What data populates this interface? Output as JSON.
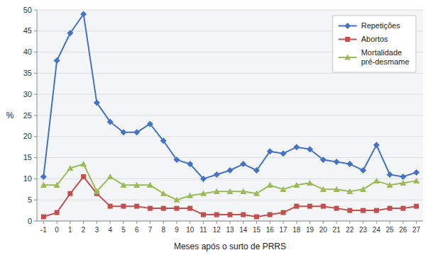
{
  "chart_data": {
    "type": "line",
    "xlabel": "Meses após o surto de PRRS",
    "ylabel": "%",
    "x": [
      -1,
      0,
      1,
      2,
      3,
      4,
      5,
      6,
      7,
      8,
      9,
      10,
      11,
      12,
      13,
      14,
      15,
      16,
      17,
      18,
      19,
      20,
      21,
      22,
      23,
      24,
      25,
      26,
      27
    ],
    "xlim": [
      -1.5,
      27.5
    ],
    "xticks": [
      -1,
      0,
      1,
      2,
      3,
      4,
      5,
      6,
      7,
      8,
      9,
      10,
      11,
      12,
      13,
      14,
      15,
      16,
      17,
      18,
      19,
      20,
      21,
      22,
      23,
      24,
      25,
      26,
      27
    ],
    "ylim": [
      0,
      50
    ],
    "yticks": [
      0,
      5,
      10,
      15,
      20,
      25,
      30,
      35,
      40,
      45,
      50
    ],
    "grid": true,
    "legend": "upper right",
    "series": [
      {
        "name": "Repetições",
        "color": "#4472C4",
        "marker": "diamond",
        "values": [
          10.5,
          38,
          44.5,
          49,
          28,
          23.5,
          21,
          21,
          23,
          19,
          14.5,
          13.5,
          10,
          11,
          12,
          13.5,
          12,
          16.5,
          16,
          17.5,
          17,
          14.5,
          14,
          13.5,
          12,
          18,
          11,
          10.5,
          11.5
        ]
      },
      {
        "name": "Abortos",
        "color": "#C0504D",
        "marker": "square",
        "values": [
          1,
          2,
          6.5,
          10.5,
          6.5,
          3.5,
          3.5,
          3.5,
          3,
          3,
          3,
          3,
          1.5,
          1.5,
          1.5,
          1.5,
          1,
          1.5,
          2,
          3.5,
          3.5,
          3.5,
          3,
          2.5,
          2.5,
          2.5,
          3,
          3,
          3.5
        ]
      },
      {
        "name": "Mortalidade\npré-desmame",
        "color": "#9BBB59",
        "marker": "triangle",
        "values": [
          8.5,
          8.5,
          12.5,
          13.5,
          7,
          10.5,
          8.5,
          8.5,
          8.5,
          6.5,
          5,
          6,
          6.5,
          7,
          7,
          7,
          6.5,
          8.5,
          7.5,
          8.5,
          9,
          7.5,
          7.5,
          7,
          7.5,
          9.5,
          8.5,
          9,
          9.5
        ]
      }
    ]
  }
}
